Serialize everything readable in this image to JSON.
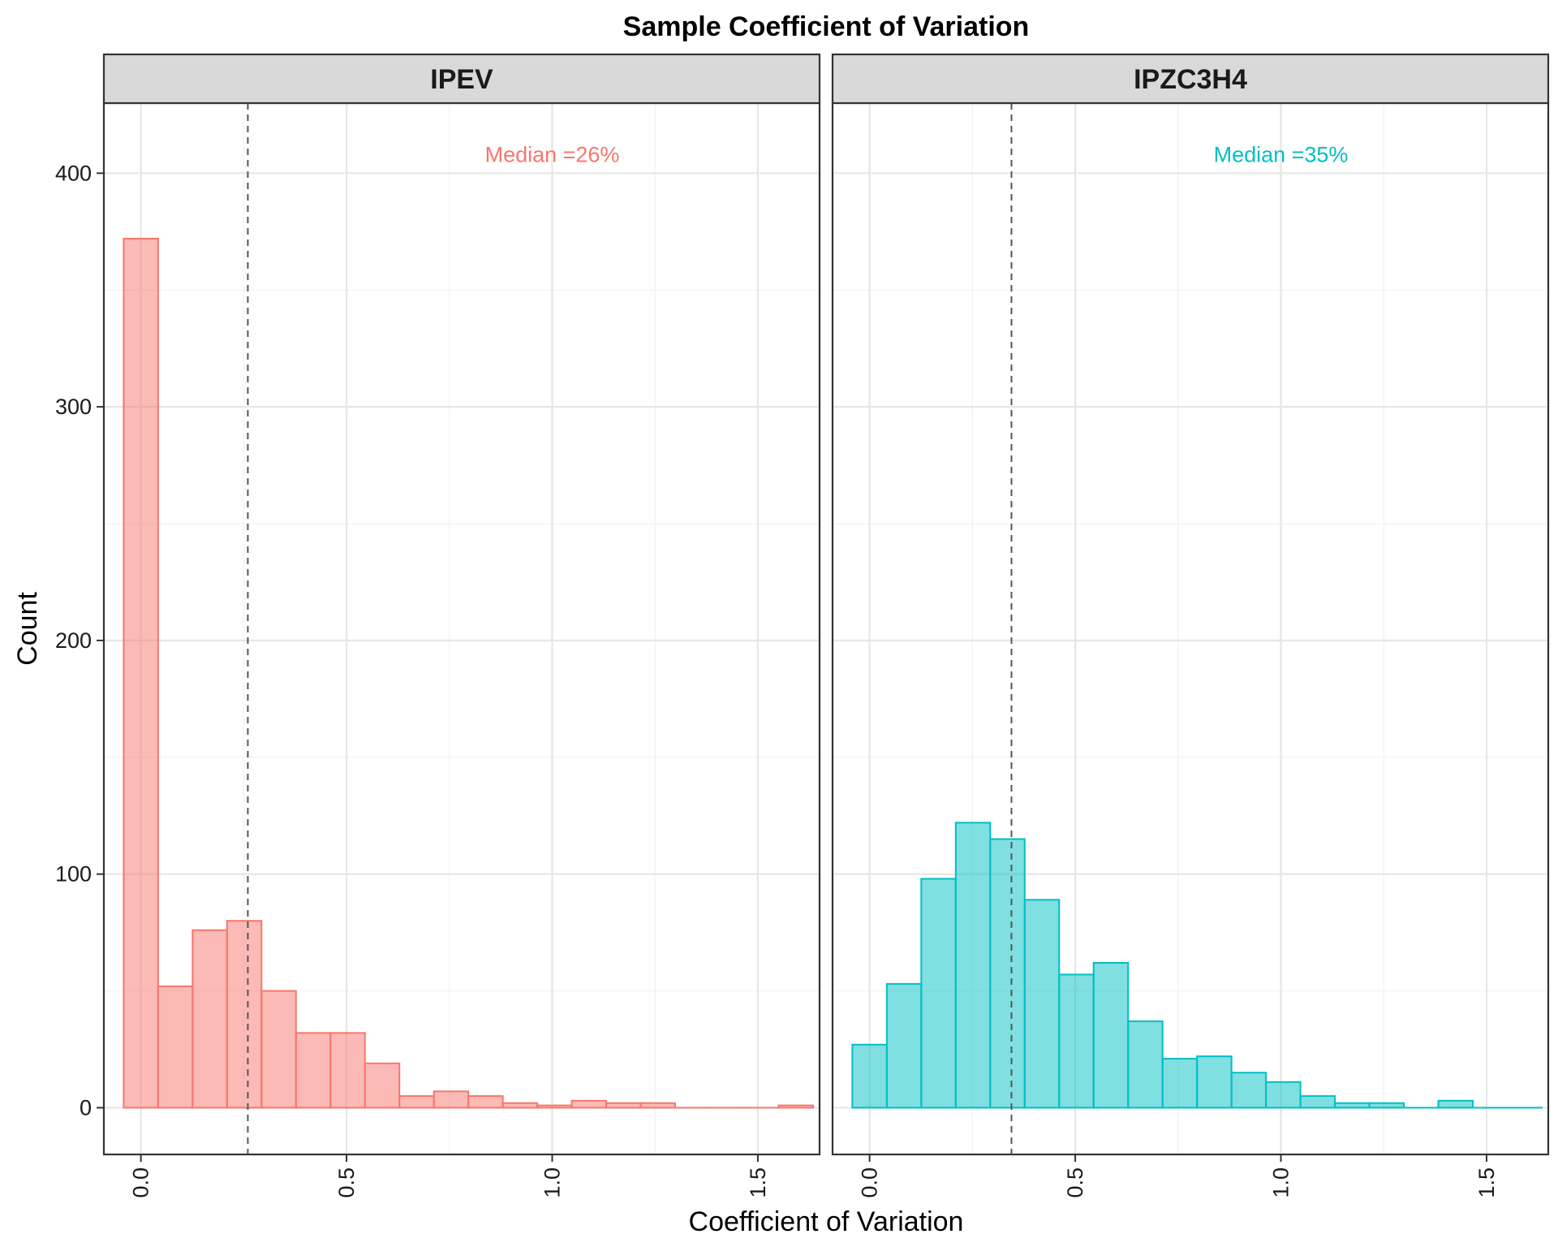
{
  "chart_data": {
    "type": "bar",
    "subtype": "faceted-histogram",
    "title": "Sample Coefficient of Variation",
    "xlabel": "Coefficient of Variation",
    "ylabel": "Count",
    "xlim": [
      -0.09,
      1.65
    ],
    "ylim": [
      -20,
      430
    ],
    "x_ticks": [
      "0.0",
      "0.5",
      "1.0",
      "1.5"
    ],
    "x_tick_values": [
      0,
      0.5,
      1.0,
      1.5
    ],
    "y_ticks": [
      "0",
      "100",
      "200",
      "300",
      "400"
    ],
    "y_tick_values": [
      0,
      100,
      200,
      300,
      400
    ],
    "grid": true,
    "bin_width": 0.0838,
    "bin_start": -0.0419,
    "panels": [
      {
        "name": "IPEV",
        "color": "#F8766D",
        "fill": "#F8766D",
        "median_x": 0.26,
        "annotation": "Median =26%",
        "annotation_x": 1.0,
        "annotation_y": 408,
        "values": [
          372,
          52,
          76,
          80,
          50,
          32,
          32,
          19,
          5,
          7,
          5,
          2,
          1,
          3,
          2,
          2,
          0,
          0,
          0,
          1
        ]
      },
      {
        "name": "IPZC3H4",
        "color": "#00BFC4",
        "fill": "#00BFC4",
        "median_x": 0.345,
        "annotation": "Median =35%",
        "annotation_x": 1.0,
        "annotation_y": 408,
        "values": [
          27,
          53,
          98,
          122,
          115,
          89,
          57,
          62,
          37,
          21,
          22,
          15,
          11,
          5,
          2,
          2,
          0,
          3,
          0,
          0
        ]
      }
    ]
  }
}
